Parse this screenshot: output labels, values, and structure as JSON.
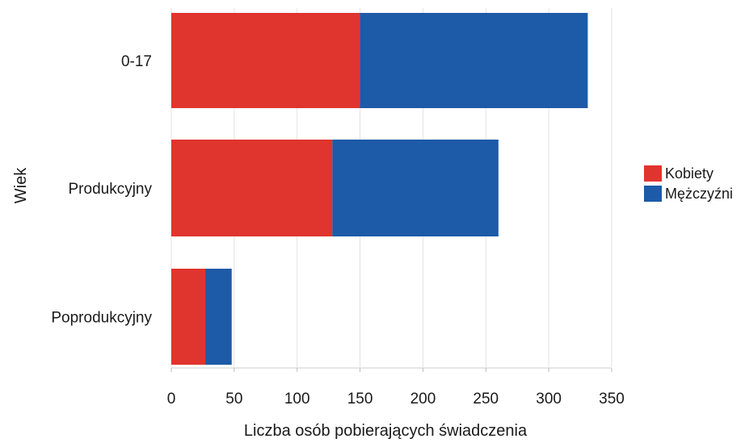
{
  "chart_data": {
    "type": "bar",
    "orientation": "horizontal",
    "stacked": true,
    "categories": [
      "0-17",
      "Produkcyjny",
      "Poprodukcyjny"
    ],
    "series": [
      {
        "name": "Kobiety",
        "values": [
          150,
          128,
          27
        ],
        "color": "#e0342e"
      },
      {
        "name": "Mężczyźni",
        "values": [
          181,
          132,
          21
        ],
        "color": "#1d5aa8"
      }
    ],
    "xlabel": "Liczba osób pobierających świadczenia",
    "ylabel": "Wiek",
    "xlim": [
      0,
      350
    ],
    "xticks": [
      0,
      50,
      100,
      150,
      200,
      250,
      300,
      350
    ],
    "grid": true,
    "legend_position": "right"
  }
}
